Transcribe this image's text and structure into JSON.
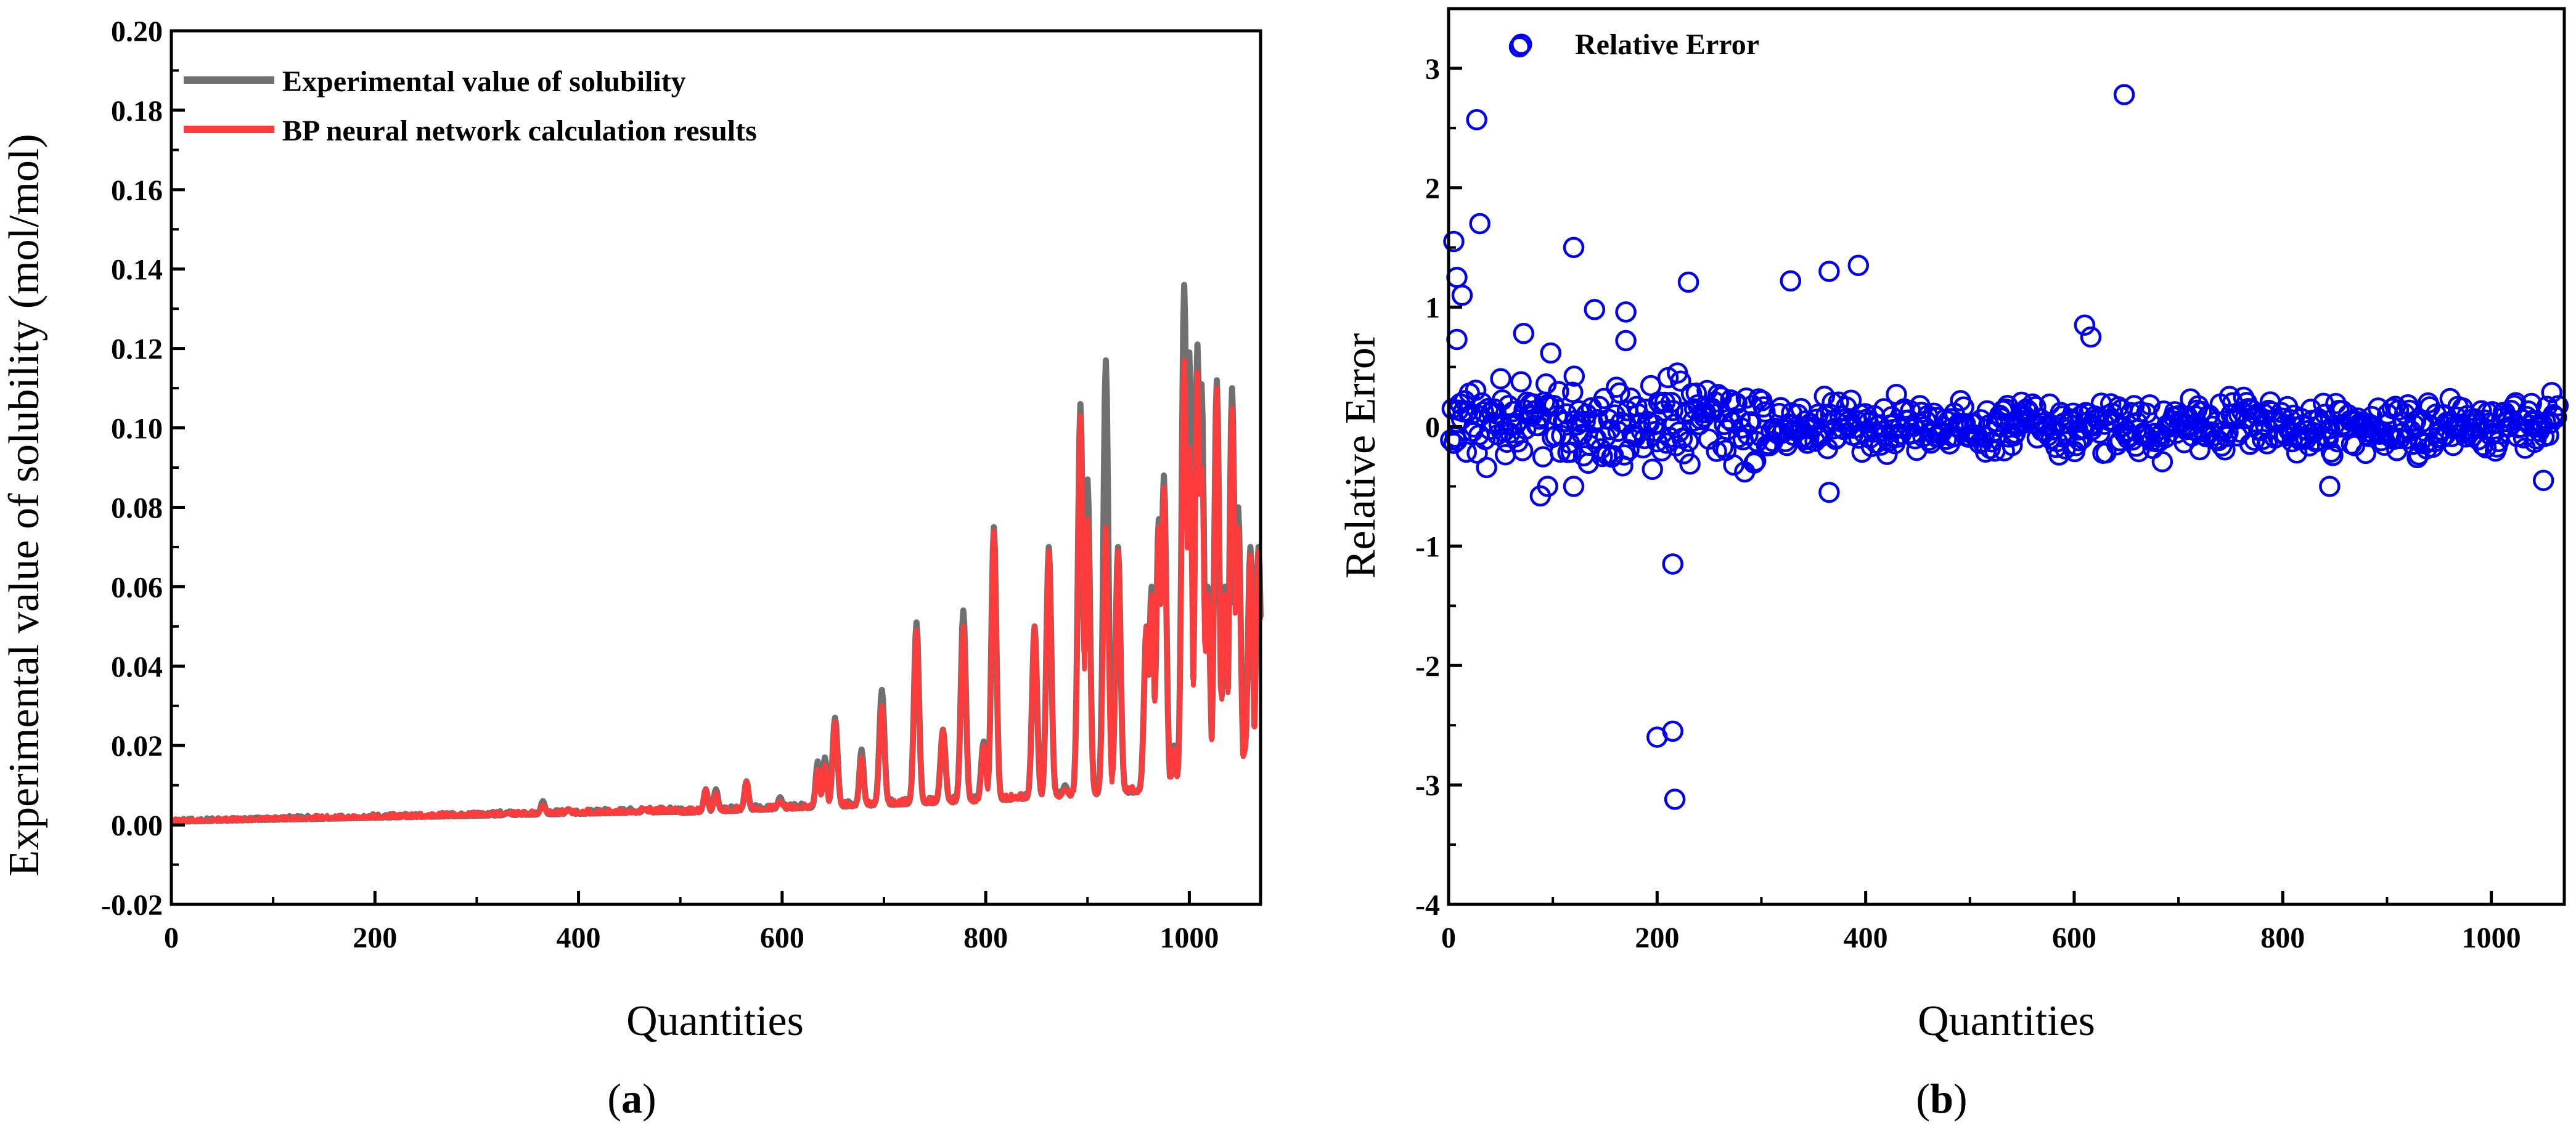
{
  "chart_data": [
    {
      "id": "a",
      "type": "line",
      "panel_label_open": "(",
      "panel_label_letter": "a",
      "panel_label_close": ")",
      "xlabel": "Quantities",
      "ylabel": "Experimental value of solubility (mol/mol)",
      "xlim": [
        0,
        1070
      ],
      "ylim": [
        -0.02,
        0.2
      ],
      "x_ticks": [
        0,
        200,
        400,
        600,
        800,
        1000
      ],
      "y_ticks": [
        -0.02,
        0.0,
        0.02,
        0.04,
        0.06,
        0.08,
        0.1,
        0.12,
        0.14,
        0.16,
        0.18,
        0.2
      ],
      "x_tick_labels": [
        "0",
        "200",
        "400",
        "600",
        "800",
        "1000"
      ],
      "y_tick_labels": [
        "-0.02",
        "0.00",
        "0.02",
        "0.04",
        "0.06",
        "0.08",
        "0.10",
        "0.12",
        "0.14",
        "0.16",
        "0.18",
        "0.20"
      ],
      "legend_position": "top-left",
      "series": [
        {
          "name": "Experimental value of solubility",
          "color": "#707070",
          "peaks": [
            [
              270,
              0.002
            ],
            [
              330,
              0.003
            ],
            [
              365,
              0.006
            ],
            [
              390,
              0.004
            ],
            [
              465,
              0.004
            ],
            [
              485,
              0.003
            ],
            [
              525,
              0.009
            ],
            [
              535,
              0.009
            ],
            [
              565,
              0.011
            ],
            [
              598,
              0.007
            ],
            [
              635,
              0.016
            ],
            [
              642,
              0.017
            ],
            [
              652,
              0.027
            ],
            [
              678,
              0.019
            ],
            [
              698,
              0.034
            ],
            [
              732,
              0.051
            ],
            [
              758,
              0.024
            ],
            [
              778,
              0.054
            ],
            [
              798,
              0.021
            ],
            [
              808,
              0.075
            ],
            [
              830,
              0.007
            ],
            [
              848,
              0.05
            ],
            [
              862,
              0.07
            ],
            [
              878,
              0.01
            ],
            [
              893,
              0.106
            ],
            [
              900,
              0.087
            ],
            [
              918,
              0.117
            ],
            [
              930,
              0.07
            ],
            [
              958,
              0.05
            ],
            [
              963,
              0.06
            ],
            [
              970,
              0.077
            ],
            [
              975,
              0.088
            ],
            [
              985,
              0.02
            ],
            [
              995,
              0.136
            ],
            [
              1000,
              0.119
            ],
            [
              1008,
              0.121
            ],
            [
              1012,
              0.111
            ],
            [
              1018,
              0.06
            ],
            [
              1027,
              0.112
            ],
            [
              1035,
              0.06
            ],
            [
              1042,
              0.11
            ],
            [
              1048,
              0.08
            ],
            [
              1055,
              0.02
            ],
            [
              1060,
              0.07
            ],
            [
              1068,
              0.07
            ]
          ]
        },
        {
          "name": "BP neural network calculation results",
          "color": "#ff3b3b",
          "peaks": [
            [
              270,
              0.002
            ],
            [
              330,
              0.003
            ],
            [
              365,
              0.005
            ],
            [
              390,
              0.004
            ],
            [
              465,
              0.004
            ],
            [
              485,
              0.003
            ],
            [
              525,
              0.009
            ],
            [
              535,
              0.008
            ],
            [
              565,
              0.011
            ],
            [
              598,
              0.006
            ],
            [
              635,
              0.014
            ],
            [
              642,
              0.015
            ],
            [
              652,
              0.026
            ],
            [
              678,
              0.017
            ],
            [
              698,
              0.03
            ],
            [
              732,
              0.049
            ],
            [
              758,
              0.024
            ],
            [
              778,
              0.05
            ],
            [
              798,
              0.02
            ],
            [
              808,
              0.074
            ],
            [
              830,
              0.006
            ],
            [
              848,
              0.05
            ],
            [
              862,
              0.069
            ],
            [
              878,
              0.009
            ],
            [
              893,
              0.103
            ],
            [
              900,
              0.077
            ],
            [
              918,
              0.075
            ],
            [
              930,
              0.069
            ],
            [
              958,
              0.05
            ],
            [
              963,
              0.058
            ],
            [
              970,
              0.075
            ],
            [
              975,
              0.085
            ],
            [
              985,
              0.019
            ],
            [
              995,
              0.117
            ],
            [
              1000,
              0.095
            ],
            [
              1008,
              0.114
            ],
            [
              1012,
              0.09
            ],
            [
              1018,
              0.058
            ],
            [
              1027,
              0.11
            ],
            [
              1035,
              0.058
            ],
            [
              1042,
              0.105
            ],
            [
              1048,
              0.075
            ],
            [
              1055,
              0.019
            ],
            [
              1060,
              0.068
            ],
            [
              1068,
              0.069
            ]
          ]
        }
      ]
    },
    {
      "id": "b",
      "type": "scatter",
      "panel_label_open": "(",
      "panel_label_letter": "b",
      "panel_label_close": ")",
      "xlabel": "Quantities",
      "ylabel": "Relative Error",
      "xlim": [
        0,
        1070
      ],
      "ylim": [
        -4,
        3.5
      ],
      "x_ticks": [
        0,
        200,
        400,
        600,
        800,
        1000
      ],
      "y_ticks": [
        -4,
        -3,
        -2,
        -1,
        0,
        1,
        2,
        3
      ],
      "x_tick_labels": [
        "0",
        "200",
        "400",
        "600",
        "800",
        "1000"
      ],
      "y_tick_labels": [
        "-4",
        "-3",
        "-2",
        "-1",
        "0",
        "1",
        "2",
        "3"
      ],
      "legend_position": "top-left",
      "series": [
        {
          "name": "Relative Error",
          "color": "#0000ee",
          "outliers": [
            [
              68,
              3.18
            ],
            [
              27,
              2.57
            ],
            [
              648,
              2.78
            ],
            [
              30,
              1.7
            ],
            [
              5,
              1.55
            ],
            [
              120,
              1.5
            ],
            [
              8,
              1.25
            ],
            [
              230,
              1.21
            ],
            [
              328,
              1.22
            ],
            [
              365,
              1.3
            ],
            [
              393,
              1.35
            ],
            [
              13,
              1.1
            ],
            [
              140,
              0.98
            ],
            [
              170,
              0.96
            ],
            [
              8,
              0.73
            ],
            [
              72,
              0.78
            ],
            [
              170,
              0.72
            ],
            [
              610,
              0.85
            ],
            [
              616,
              0.75
            ],
            [
              200,
              -2.6
            ],
            [
              215,
              -2.55
            ],
            [
              217,
              -3.12
            ],
            [
              215,
              -1.15
            ],
            [
              365,
              -0.55
            ],
            [
              88,
              -0.58
            ],
            [
              95,
              -0.5
            ],
            [
              120,
              -0.5
            ],
            [
              845,
              -0.5
            ],
            [
              1050,
              -0.45
            ]
          ]
        }
      ]
    }
  ]
}
